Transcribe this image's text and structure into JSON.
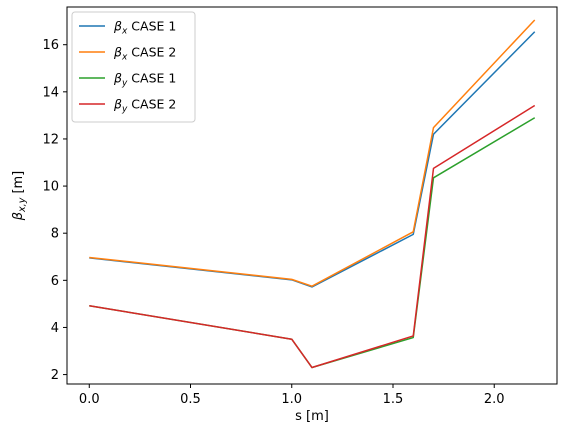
{
  "chart_data": {
    "type": "line",
    "title": "",
    "xlabel": "s [m]",
    "ylabel": "β_{x,y} [m]",
    "xlim": [
      -0.11,
      2.31
    ],
    "ylim": [
      1.6,
      17.6
    ],
    "xticks": [
      0.0,
      0.5,
      1.0,
      1.5,
      2.0
    ],
    "yticks": [
      2,
      4,
      6,
      8,
      10,
      12,
      14,
      16
    ],
    "xtick_labels": [
      "0.0",
      "0.5",
      "1.0",
      "1.5",
      "2.0"
    ],
    "ytick_labels": [
      "2",
      "4",
      "6",
      "8",
      "10",
      "12",
      "14",
      "16"
    ],
    "grid": false,
    "legend_position": "top-left",
    "series": [
      {
        "name_sym": "β",
        "name_sub": "x",
        "name_rest": " CASE 1",
        "color": "#1f77b4",
        "x": [
          0.0,
          1.0,
          1.1,
          1.6,
          1.7,
          2.2
        ],
        "y": [
          6.95,
          6.02,
          5.72,
          7.95,
          12.2,
          16.55
        ]
      },
      {
        "name_sym": "β",
        "name_sub": "x",
        "name_rest": " CASE 2",
        "color": "#ff7f0e",
        "x": [
          0.0,
          1.0,
          1.1,
          1.6,
          1.7,
          2.2
        ],
        "y": [
          6.97,
          6.04,
          5.75,
          8.06,
          12.48,
          17.05
        ]
      },
      {
        "name_sym": "β",
        "name_sub": "y",
        "name_rest": " CASE 1",
        "color": "#2ca02c",
        "x": [
          0.0,
          1.0,
          1.1,
          1.6,
          1.7,
          2.2
        ],
        "y": [
          4.92,
          3.5,
          2.3,
          3.57,
          10.35,
          12.9
        ]
      },
      {
        "name_sym": "β",
        "name_sub": "y",
        "name_rest": " CASE 2",
        "color": "#d62728",
        "x": [
          0.0,
          1.0,
          1.1,
          1.6,
          1.7,
          2.2
        ],
        "y": [
          4.92,
          3.5,
          2.3,
          3.64,
          10.75,
          13.42
        ]
      }
    ]
  }
}
